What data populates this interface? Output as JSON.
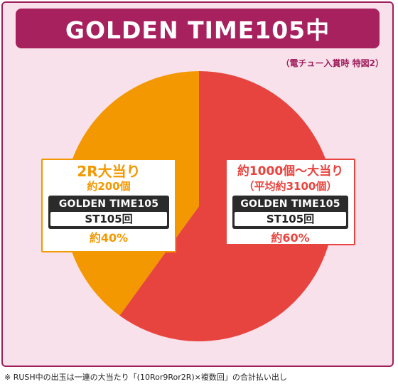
{
  "title": "GOLDEN TIME105中",
  "note": "（電チュー入賞時 特図2）",
  "colors": {
    "frame_border": "#a01e5d",
    "frame_bg": "#f8e1ea",
    "title_bg": "#a8215f",
    "big_hit": "#e8443f",
    "small_hit": "#f39800"
  },
  "labels": {
    "left": {
      "heading": "2R大当り",
      "sub": "約200個",
      "mode": "GOLDEN TIME105",
      "st": "ST105回",
      "pct": "約40%"
    },
    "right": {
      "heading": "約1000個～大当り",
      "sub": "（平均約3100個）",
      "mode": "GOLDEN TIME105",
      "st": "ST105回",
      "pct": "約60%"
    }
  },
  "chart_data": {
    "type": "pie",
    "start_angle_deg": 0,
    "direction": "clockwise",
    "slices": [
      {
        "label": "約1000個～大当り",
        "value": 60,
        "color": "#e8443f"
      },
      {
        "label": "2R大当り",
        "value": 40,
        "color": "#f39800"
      }
    ]
  },
  "footnote": "※ RUSH中の出玉は一連の大当たり「(10Ror9Ror2R)×複数回」の合計払い出し"
}
